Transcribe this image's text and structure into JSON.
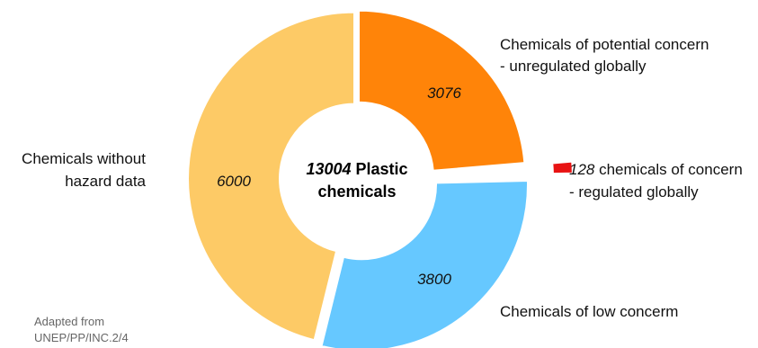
{
  "chart_data": {
    "type": "pie",
    "center_label": {
      "number": "13004",
      "line1_rest": "Plastic",
      "line2": "chemicals"
    },
    "slices": [
      {
        "name": "Chemicals of potential concern - unregulated globally",
        "value": 3076,
        "value_label": "3076",
        "color": "#FF8409",
        "label_lines": [
          "Chemicals of potential concern",
          "- unregulated globally"
        ]
      },
      {
        "name": "128 chemicals of concern - regulated globally",
        "value": 128,
        "value_label": "128",
        "color": "#E81313",
        "label_lines_italic_prefix": "128",
        "label_lines": [
          " chemicals of concern",
          "-  regulated globally"
        ]
      },
      {
        "name": "Chemicals of low concerm",
        "value": 3800,
        "value_label": "3800",
        "color": "#66C8FF",
        "label_lines": [
          "Chemicals of low concerm"
        ]
      },
      {
        "name": "Chemicals without hazard data",
        "value": 6000,
        "value_label": "6000",
        "color": "#FDCA66",
        "label_lines": [
          "Chemicals without",
          "hazard data"
        ]
      }
    ]
  },
  "source_note": [
    "Adapted from",
    "UNEP/PP/INC.2/4"
  ]
}
